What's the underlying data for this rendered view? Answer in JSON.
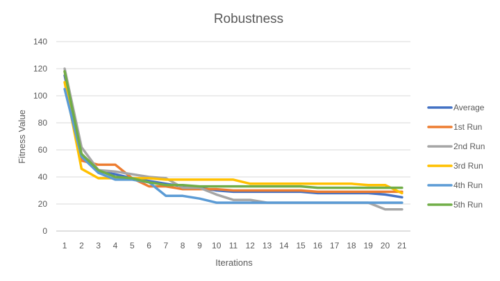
{
  "chart_data": {
    "type": "line",
    "title": "Robustness",
    "xlabel": "Iterations",
    "ylabel": "Fitness Value",
    "x": [
      1,
      2,
      3,
      4,
      5,
      6,
      7,
      8,
      9,
      10,
      11,
      12,
      13,
      14,
      15,
      16,
      17,
      18,
      19,
      20,
      21
    ],
    "ylim": [
      0,
      140
    ],
    "yticks": [
      0,
      20,
      40,
      60,
      80,
      100,
      120,
      140
    ],
    "grid": true,
    "legend_position": "right",
    "series": [
      {
        "name": "Average",
        "color": "#4472c4",
        "values": [
          115,
          55,
          44,
          42,
          39,
          37,
          35,
          33,
          32,
          30,
          29,
          29,
          29,
          29,
          29,
          28,
          28,
          28,
          28,
          27,
          25
        ]
      },
      {
        "name": "1st Run",
        "color": "#ed7d31",
        "values": [
          118,
          52,
          49,
          49,
          39,
          33,
          33,
          31,
          31,
          31,
          30,
          30,
          30,
          30,
          30,
          29,
          29,
          29,
          29,
          29,
          29
        ]
      },
      {
        "name": "2nd Run",
        "color": "#a5a5a5",
        "values": [
          120,
          62,
          45,
          44,
          42,
          40,
          39,
          32,
          32,
          27,
          23,
          23,
          21,
          21,
          21,
          21,
          21,
          21,
          21,
          16,
          16
        ]
      },
      {
        "name": "3rd Run",
        "color": "#ffc000",
        "values": [
          110,
          46,
          39,
          39,
          39,
          39,
          38,
          38,
          38,
          38,
          38,
          35,
          35,
          35,
          35,
          35,
          35,
          35,
          34,
          34,
          28
        ]
      },
      {
        "name": "4th Run",
        "color": "#5b9bd5",
        "values": [
          105,
          55,
          43,
          38,
          38,
          36,
          26,
          26,
          24,
          21,
          21,
          21,
          21,
          21,
          21,
          21,
          21,
          21,
          21,
          21,
          21
        ]
      },
      {
        "name": "5th Run",
        "color": "#70ad47",
        "values": [
          118,
          57,
          45,
          40,
          39,
          36,
          34,
          34,
          33,
          33,
          33,
          33,
          33,
          33,
          33,
          32,
          32,
          32,
          32,
          32,
          32
        ]
      }
    ]
  }
}
